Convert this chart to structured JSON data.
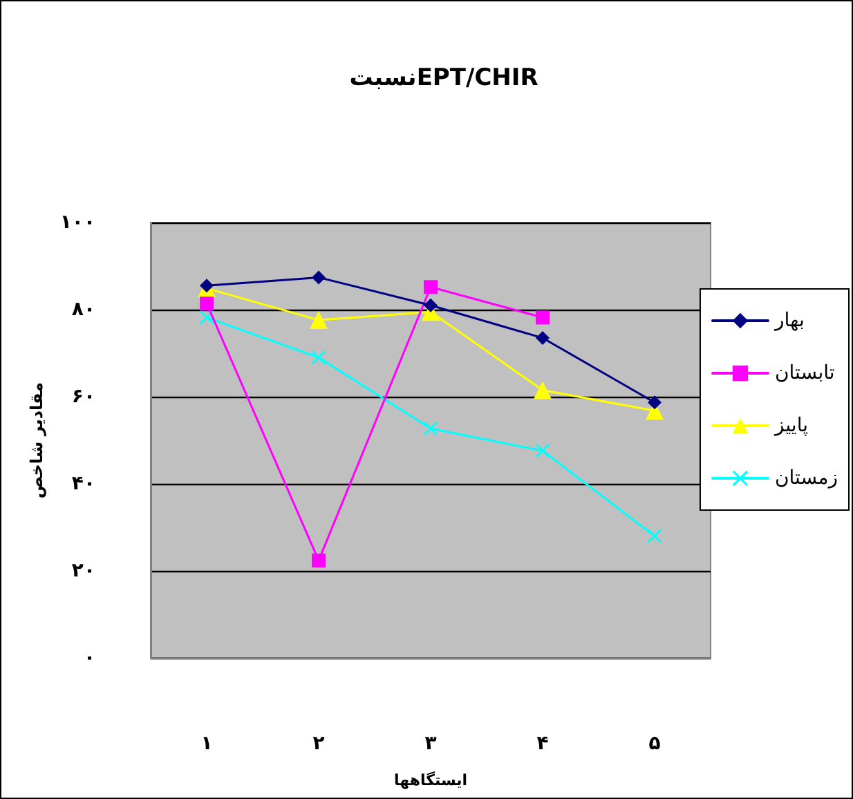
{
  "chart_data": {
    "type": "line",
    "title": "نسبتEPT/CHIR",
    "xlabel": "ایستگاهها",
    "ylabel": "مقادیر شاخص",
    "categories": [
      "۱",
      "۲",
      "۳",
      "۴",
      "۵"
    ],
    "ylim": [
      0,
      100
    ],
    "yticks": [
      {
        "value": 0,
        "label": "۰"
      },
      {
        "value": 20,
        "label": "۲۰"
      },
      {
        "value": 40,
        "label": "۴۰"
      },
      {
        "value": 60,
        "label": "۶۰"
      },
      {
        "value": 80,
        "label": "۸۰"
      },
      {
        "value": 100,
        "label": "۱۰۰"
      }
    ],
    "grid": "y",
    "legend": "right",
    "series": [
      {
        "name": "بهار",
        "color": "#000080",
        "marker": "diamond",
        "values": [
          85.5,
          87.4,
          81,
          73.5,
          58.7
        ]
      },
      {
        "name": "تابستان",
        "color": "#ff00ff",
        "marker": "square",
        "values": [
          81.4,
          22.4,
          85.2,
          78.2,
          null
        ]
      },
      {
        "name": "پاییز",
        "color": "#ffff00",
        "marker": "triangle",
        "values": [
          84.9,
          77.6,
          79.5,
          61.5,
          56.8
        ]
      },
      {
        "name": "زمستان",
        "color": "#00ffff",
        "marker": "cross",
        "values": [
          78.2,
          69,
          52.7,
          47.6,
          28
        ]
      }
    ]
  }
}
